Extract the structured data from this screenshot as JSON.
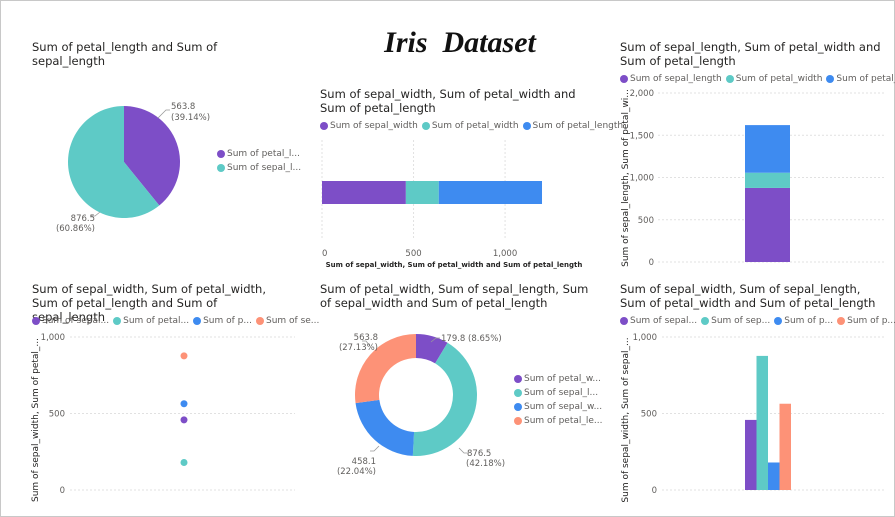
{
  "dashboard": {
    "title": "Iris  Dataset"
  },
  "colors": {
    "purple": "#7d4ec7",
    "teal": "#5ecac6",
    "blue": "#3e8bf0",
    "salmon": "#fd9277",
    "grid": "#e1e1e1",
    "axis": "#605e5c"
  },
  "charts": {
    "pie1": {
      "title": "Sum of petal_length and Sum of sepal_length",
      "legend": [
        "Sum of petal_l...",
        "Sum of sepal_l..."
      ],
      "labels": [
        [
          "563.8",
          "(39.14%)"
        ],
        [
          "876.5",
          "(60.86%)"
        ]
      ]
    },
    "bar1": {
      "title": "Sum of sepal_width, Sum of petal_width and Sum of petal_length",
      "legend": [
        "Sum of sepal_width",
        "Sum of petal_width",
        "Sum of petal_length"
      ],
      "ticks": [
        "0",
        "500",
        "1,000"
      ],
      "xlabel": "Sum of sepal_width, Sum of petal_width and Sum of petal_length"
    },
    "stack1": {
      "title": "Sum of sepal_length, Sum of petal_width and Sum of petal_length",
      "legend": [
        "Sum of sepal_length",
        "Sum of petal_width",
        "Sum of petal_l..."
      ],
      "ticks": [
        "0",
        "500",
        "1,000",
        "1,500",
        "2,000"
      ],
      "ylabel": "Sum of sepal_length, Sum of petal_wi..."
    },
    "scatter1": {
      "title": "Sum of sepal_width, Sum of petal_width, Sum of petal_length and Sum of sepal_length",
      "legend": [
        "Sum of sepal...",
        "Sum of petal...",
        "Sum of p...",
        "Sum of se..."
      ],
      "ticks": [
        "0",
        "500",
        "1,000"
      ],
      "ylabel": "Sum of sepal_width, Sum of petal_..."
    },
    "donut1": {
      "title": "Sum of petal_width, Sum of sepal_length, Sum of sepal_width and Sum of petal_length",
      "legend": [
        "Sum of petal_w...",
        "Sum of sepal_l...",
        "Sum of sepal_w...",
        "Sum of petal_le..."
      ],
      "labels": [
        "179.8 (8.65%)",
        [
          "876.5",
          "(42.18%)"
        ],
        [
          "458.1",
          "(22.04%)"
        ],
        [
          "563.8",
          "(27.13%)"
        ]
      ]
    },
    "cluster1": {
      "title": "Sum of sepal_width, Sum of sepal_length, Sum of petal_width and Sum of petal_length",
      "legend": [
        "Sum of sepal...",
        "Sum of sep...",
        "Sum of p...",
        "Sum of p..."
      ],
      "ticks": [
        "0",
        "500",
        "1,000"
      ],
      "ylabel": "Sum of sepal_width, Sum of sepal_..."
    }
  },
  "chart_data": [
    {
      "type": "pie",
      "title": "Sum of petal_length and Sum of sepal_length",
      "categories": [
        "Sum of petal_length",
        "Sum of sepal_length"
      ],
      "values": [
        563.8,
        876.5
      ]
    },
    {
      "type": "bar",
      "title": "Sum of sepal_width, Sum of petal_width and Sum of petal_length",
      "orientation": "horizontal-stacked",
      "series": [
        {
          "name": "Sum of sepal_width",
          "values": [
            458.1
          ]
        },
        {
          "name": "Sum of petal_width",
          "values": [
            179.8
          ]
        },
        {
          "name": "Sum of petal_length",
          "values": [
            563.8
          ]
        }
      ],
      "xlim": [
        0,
        1300
      ]
    },
    {
      "type": "bar",
      "title": "Sum of sepal_length, Sum of petal_width and Sum of petal_length",
      "orientation": "vertical-stacked",
      "series": [
        {
          "name": "Sum of sepal_length",
          "values": [
            876.5
          ]
        },
        {
          "name": "Sum of petal_width",
          "values": [
            179.8
          ]
        },
        {
          "name": "Sum of petal_length",
          "values": [
            563.8
          ]
        }
      ],
      "ylim": [
        0,
        2000
      ]
    },
    {
      "type": "scatter",
      "title": "Sum of sepal_width, Sum of petal_width, Sum of petal_length and Sum of sepal_length",
      "series": [
        {
          "name": "Sum of sepal_width",
          "values": [
            458.1
          ]
        },
        {
          "name": "Sum of petal_width",
          "values": [
            179.8
          ]
        },
        {
          "name": "Sum of petal_length",
          "values": [
            563.8
          ]
        },
        {
          "name": "Sum of sepal_length",
          "values": [
            876.5
          ]
        }
      ],
      "ylim": [
        0,
        1000
      ]
    },
    {
      "type": "pie",
      "variant": "donut",
      "title": "Sum of petal_width, Sum of sepal_length, Sum of sepal_width and Sum of petal_length",
      "categories": [
        "Sum of petal_width",
        "Sum of sepal_length",
        "Sum of sepal_width",
        "Sum of petal_length"
      ],
      "values": [
        179.8,
        876.5,
        458.1,
        563.8
      ]
    },
    {
      "type": "bar",
      "title": "Sum of sepal_width, Sum of sepal_length, Sum of petal_width and Sum of petal_length",
      "orientation": "vertical-clustered",
      "series": [
        {
          "name": "Sum of sepal_width",
          "values": [
            458.1
          ]
        },
        {
          "name": "Sum of sepal_length",
          "values": [
            876.5
          ]
        },
        {
          "name": "Sum of petal_width",
          "values": [
            179.8
          ]
        },
        {
          "name": "Sum of petal_length",
          "values": [
            563.8
          ]
        }
      ],
      "ylim": [
        0,
        1000
      ]
    }
  ]
}
